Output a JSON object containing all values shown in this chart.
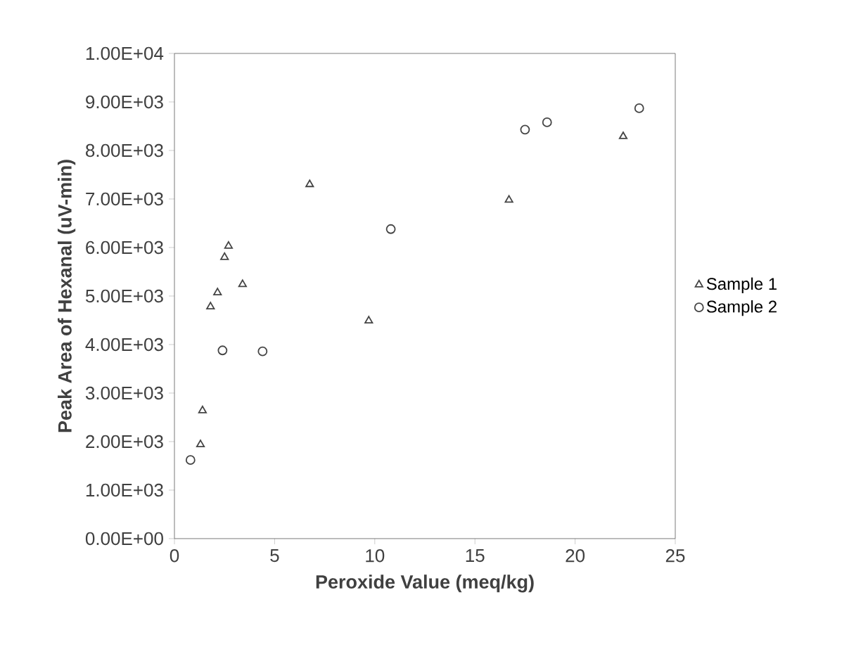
{
  "chart_data": {
    "type": "scatter",
    "xlabel": "Peroxide Value (meq/kg)",
    "ylabel": "Peak Area of Hexanal (uV-min)",
    "xlim": [
      0,
      25
    ],
    "xticks": [
      0,
      5,
      10,
      15,
      20,
      25
    ],
    "ylim": [
      0,
      10000
    ],
    "yticks": [
      {
        "value": 0,
        "label": "0.00E+00"
      },
      {
        "value": 1000,
        "label": "1.00E+03"
      },
      {
        "value": 2000,
        "label": "2.00E+03"
      },
      {
        "value": 3000,
        "label": "3.00E+03"
      },
      {
        "value": 4000,
        "label": "4.00E+03"
      },
      {
        "value": 5000,
        "label": "5.00E+03"
      },
      {
        "value": 6000,
        "label": "6.00E+03"
      },
      {
        "value": 7000,
        "label": "7.00E+03"
      },
      {
        "value": 8000,
        "label": "8.00E+03"
      },
      {
        "value": 9000,
        "label": "9.00E+03"
      },
      {
        "value": 10000,
        "label": "1.00E+04"
      }
    ],
    "grid": false,
    "legend": "right",
    "series": [
      {
        "name": "Sample 1",
        "color": "#444444",
        "marker": "triangle",
        "x": [
          1.3,
          1.4,
          1.8,
          2.15,
          2.5,
          2.7,
          3.4,
          6.75,
          9.7,
          16.7,
          22.4
        ],
        "values": [
          1940,
          2640,
          4780,
          5070,
          5800,
          6030,
          5240,
          7300,
          4490,
          6980,
          8290
        ]
      },
      {
        "name": "Sample 2",
        "color": "#444444",
        "marker": "circle",
        "x": [
          0.8,
          2.4,
          4.4,
          10.8,
          17.5,
          18.6,
          23.2
        ],
        "values": [
          1620,
          3880,
          3860,
          6380,
          8430,
          8580,
          8870
        ]
      }
    ]
  }
}
